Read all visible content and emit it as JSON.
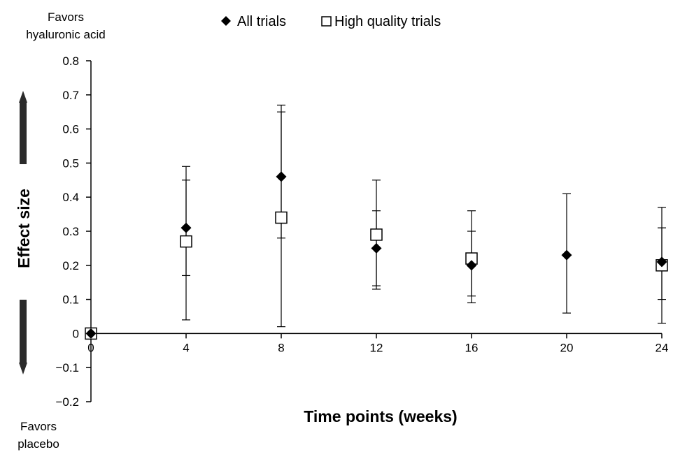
{
  "chart_data": {
    "type": "scatter",
    "xlabel": "Time points (weeks)",
    "ylabel": "Effect size",
    "xlim": [
      0,
      24
    ],
    "ylim": [
      -0.2,
      0.8
    ],
    "x_ticks": [
      0,
      4,
      8,
      12,
      16,
      20,
      24
    ],
    "x_tick_labels": [
      "0",
      "4",
      "8",
      "12",
      "16",
      "20",
      "24"
    ],
    "y_ticks": [
      -0.2,
      -0.1,
      0,
      0.1,
      0.2,
      0.3,
      0.4,
      0.5,
      0.6,
      0.7,
      0.8
    ],
    "y_tick_labels": [
      "−0.2",
      "−0.1",
      "0",
      "0.1",
      "0.2",
      "0.3",
      "0.4",
      "0.5",
      "0.6",
      "0.7",
      "0.8"
    ],
    "grid": false,
    "legend_position": "top-center",
    "annotations": {
      "top": [
        "Favors",
        "hyaluronic acid"
      ],
      "bottom": [
        "Favors",
        "placebo"
      ]
    },
    "series": [
      {
        "name": "All trials",
        "marker": "diamond",
        "color": "#000000",
        "points": [
          {
            "x": 0,
            "y": 0,
            "lower": 0,
            "upper": 0
          },
          {
            "x": 4,
            "y": 0.31,
            "lower": 0.17,
            "upper": 0.45
          },
          {
            "x": 8,
            "y": 0.46,
            "lower": 0.28,
            "upper": 0.65
          },
          {
            "x": 12,
            "y": 0.25,
            "lower": 0.14,
            "upper": 0.36
          },
          {
            "x": 16,
            "y": 0.2,
            "lower": 0.11,
            "upper": 0.3
          },
          {
            "x": 20,
            "y": 0.23,
            "lower": 0.06,
            "upper": 0.41
          },
          {
            "x": 24,
            "y": 0.21,
            "lower": 0.1,
            "upper": 0.31
          }
        ]
      },
      {
        "name": "High quality trials",
        "marker": "square-open",
        "color": "#000000",
        "points": [
          {
            "x": 0,
            "y": 0,
            "lower": 0,
            "upper": 0
          },
          {
            "x": 4,
            "y": 0.27,
            "lower": 0.04,
            "upper": 0.49
          },
          {
            "x": 8,
            "y": 0.34,
            "lower": 0.02,
            "upper": 0.67
          },
          {
            "x": 12,
            "y": 0.29,
            "lower": 0.13,
            "upper": 0.45
          },
          {
            "x": 16,
            "y": 0.22,
            "lower": 0.09,
            "upper": 0.36
          },
          {
            "x": 24,
            "y": 0.2,
            "lower": 0.03,
            "upper": 0.37
          }
        ]
      }
    ]
  }
}
